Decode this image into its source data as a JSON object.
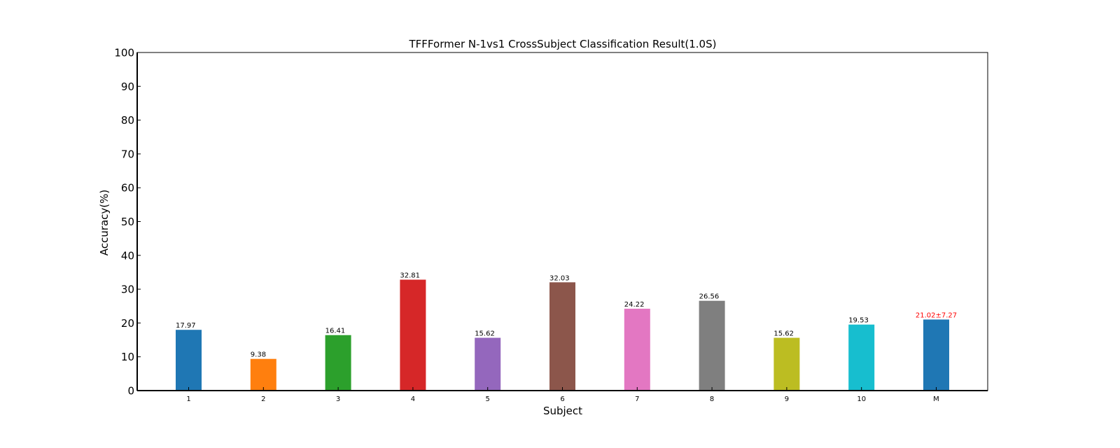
{
  "chart_data": {
    "type": "bar",
    "title": "TFFFormer N-1vs1 CrossSubject Classification Result(1.0S)",
    "xlabel": "Subject",
    "ylabel": "Accuracy(%)",
    "ylim": [
      0,
      100
    ],
    "yticks": [
      "0",
      "10",
      "20",
      "30",
      "40",
      "50",
      "60",
      "70",
      "80",
      "90",
      "100"
    ],
    "categories": [
      "1",
      "2",
      "3",
      "4",
      "5",
      "6",
      "7",
      "8",
      "9",
      "10",
      "M"
    ],
    "values": [
      17.97,
      9.38,
      16.41,
      32.81,
      15.62,
      32.03,
      24.22,
      26.56,
      15.62,
      19.53,
      21.02
    ],
    "value_labels": [
      "17.97",
      "9.38",
      "16.41",
      "32.81",
      "15.62",
      "32.03",
      "24.22",
      "26.56",
      "15.62",
      "19.53",
      "21.02±7.27"
    ],
    "colors": [
      "#1f77b4",
      "#ff7f0e",
      "#2ca02c",
      "#d62728",
      "#9467bd",
      "#8c564b",
      "#e377c2",
      "#7f7f7f",
      "#bcbd22",
      "#17becf",
      "#1f77b4"
    ],
    "label_colors": [
      "#000000",
      "#000000",
      "#000000",
      "#000000",
      "#000000",
      "#000000",
      "#000000",
      "#000000",
      "#000000",
      "#000000",
      "#ff0000"
    ],
    "grid": false,
    "legend": "none"
  }
}
